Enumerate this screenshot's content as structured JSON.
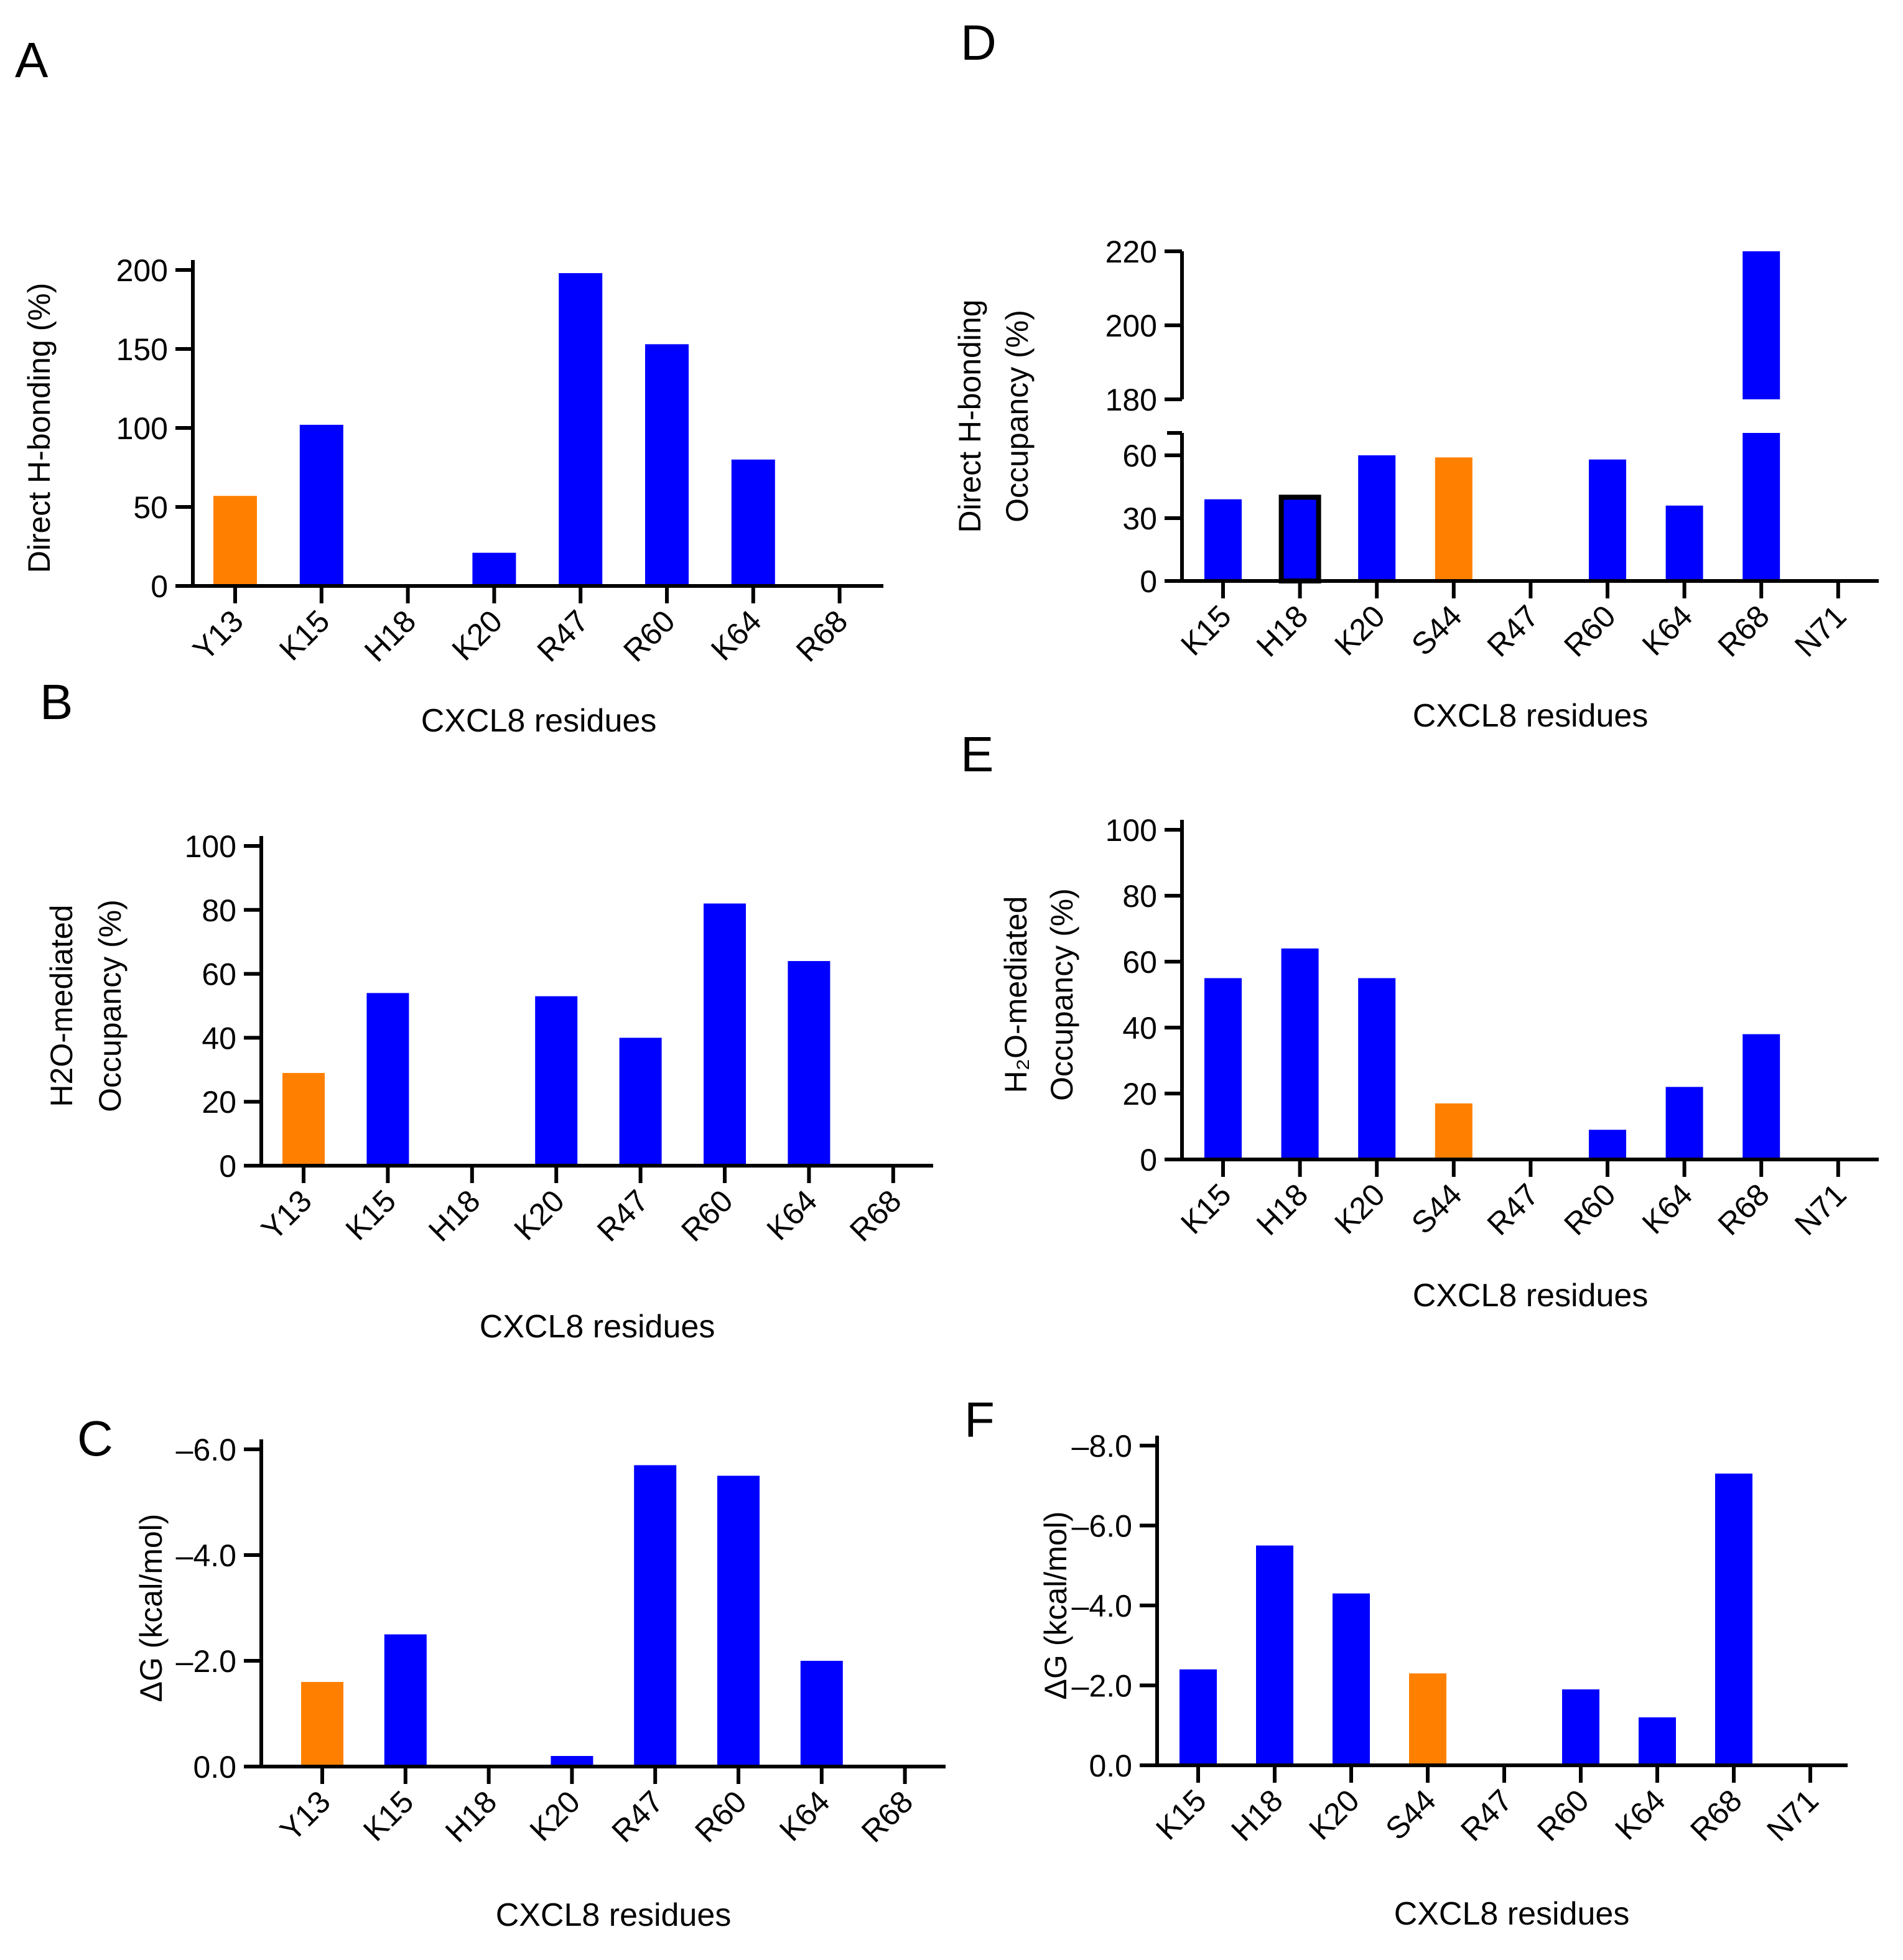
{
  "colors": {
    "blue": "#0000ff",
    "orange": "#ff8000",
    "axis": "#000000"
  },
  "chart_data": [
    {
      "panel": "A",
      "type": "bar",
      "ylabel": [
        "Direct H-bonding (%)"
      ],
      "xlabel": "CXCL8 residues",
      "categories": [
        "Y13",
        "K15",
        "H18",
        "K20",
        "R47",
        "R60",
        "K64",
        "R68"
      ],
      "values": [
        57,
        102,
        0,
        21,
        198,
        153,
        80,
        0
      ],
      "highlight": [
        "Y13"
      ],
      "yticks": [
        "0",
        "50",
        "100",
        "150",
        "200"
      ],
      "ytick_values": [
        0,
        50,
        100,
        150,
        200
      ],
      "ylim": [
        0,
        200
      ]
    },
    {
      "panel": "B",
      "type": "bar",
      "ylabel": [
        "H2O-mediated",
        "Occupancy (%)"
      ],
      "xlabel": "CXCL8 residues",
      "categories": [
        "Y13",
        "K15",
        "H18",
        "K20",
        "R47",
        "R60",
        "K64",
        "R68"
      ],
      "values": [
        29,
        54,
        0,
        53,
        40,
        82,
        64,
        0
      ],
      "highlight": [
        "Y13"
      ],
      "yticks": [
        "0",
        "20",
        "40",
        "60",
        "80",
        "100"
      ],
      "ytick_values": [
        0,
        20,
        40,
        60,
        80,
        100
      ],
      "ylim": [
        0,
        100
      ]
    },
    {
      "panel": "C",
      "type": "bar",
      "ylabel": [
        "ΔG (kcal/mol)"
      ],
      "xlabel": "CXCL8 residues",
      "categories": [
        "Y13",
        "K15",
        "H18",
        "K20",
        "R47",
        "R60",
        "K64",
        "R68"
      ],
      "values": [
        -1.6,
        -2.5,
        0,
        -0.2,
        -5.7,
        -5.5,
        -2.0,
        0
      ],
      "highlight": [
        "Y13"
      ],
      "yticks": [
        "0.0",
        "-2.0",
        "-4.0",
        "-6.0"
      ],
      "ytick_values": [
        0,
        -2,
        -4,
        -6
      ],
      "ylim": [
        0,
        -6
      ]
    },
    {
      "panel": "D",
      "type": "bar",
      "ylabel": [
        "Direct H-bonding",
        "Occupancy (%)"
      ],
      "xlabel": "CXCL8 residues",
      "categories": [
        "K15",
        "H18",
        "K20",
        "S44",
        "R47",
        "R60",
        "K64",
        "R68",
        "N71"
      ],
      "values": [
        39,
        40,
        60,
        59,
        0,
        58,
        36,
        220,
        0
      ],
      "highlight": [
        "S44"
      ],
      "outlined": [
        "H18"
      ],
      "yticks": [
        "0",
        "30",
        "60",
        "180",
        "200",
        "220"
      ],
      "ytick_values": [
        0,
        30,
        60,
        180,
        200,
        220
      ],
      "broken_axis": {
        "lower": [
          0,
          70
        ],
        "upper": [
          180,
          220
        ]
      }
    },
    {
      "panel": "E",
      "type": "bar",
      "ylabel": [
        "H₂O-mediated",
        "Occupancy (%)"
      ],
      "xlabel": "CXCL8 residues",
      "categories": [
        "K15",
        "H18",
        "K20",
        "S44",
        "R47",
        "R60",
        "K64",
        "R68",
        "N71"
      ],
      "values": [
        55,
        64,
        55,
        17,
        0,
        9,
        22,
        38,
        0
      ],
      "highlight": [
        "S44"
      ],
      "yticks": [
        "0",
        "20",
        "40",
        "60",
        "80",
        "100"
      ],
      "ytick_values": [
        0,
        20,
        40,
        60,
        80,
        100
      ],
      "ylim": [
        0,
        100
      ]
    },
    {
      "panel": "F",
      "type": "bar",
      "ylabel": [
        "ΔG (kcal/mol)"
      ],
      "xlabel": "CXCL8 residues",
      "categories": [
        "K15",
        "H18",
        "K20",
        "S44",
        "R47",
        "R60",
        "K64",
        "R68",
        "N71"
      ],
      "values": [
        -2.4,
        -5.5,
        -4.3,
        -2.3,
        0,
        -1.9,
        -1.2,
        -7.3,
        0
      ],
      "highlight": [
        "S44"
      ],
      "yticks": [
        "0.0",
        "-2.0",
        "-4.0",
        "-6.0",
        "-8.0"
      ],
      "ytick_values": [
        0,
        -2,
        -4,
        -6,
        -8
      ],
      "ylim": [
        0,
        -8
      ]
    }
  ]
}
